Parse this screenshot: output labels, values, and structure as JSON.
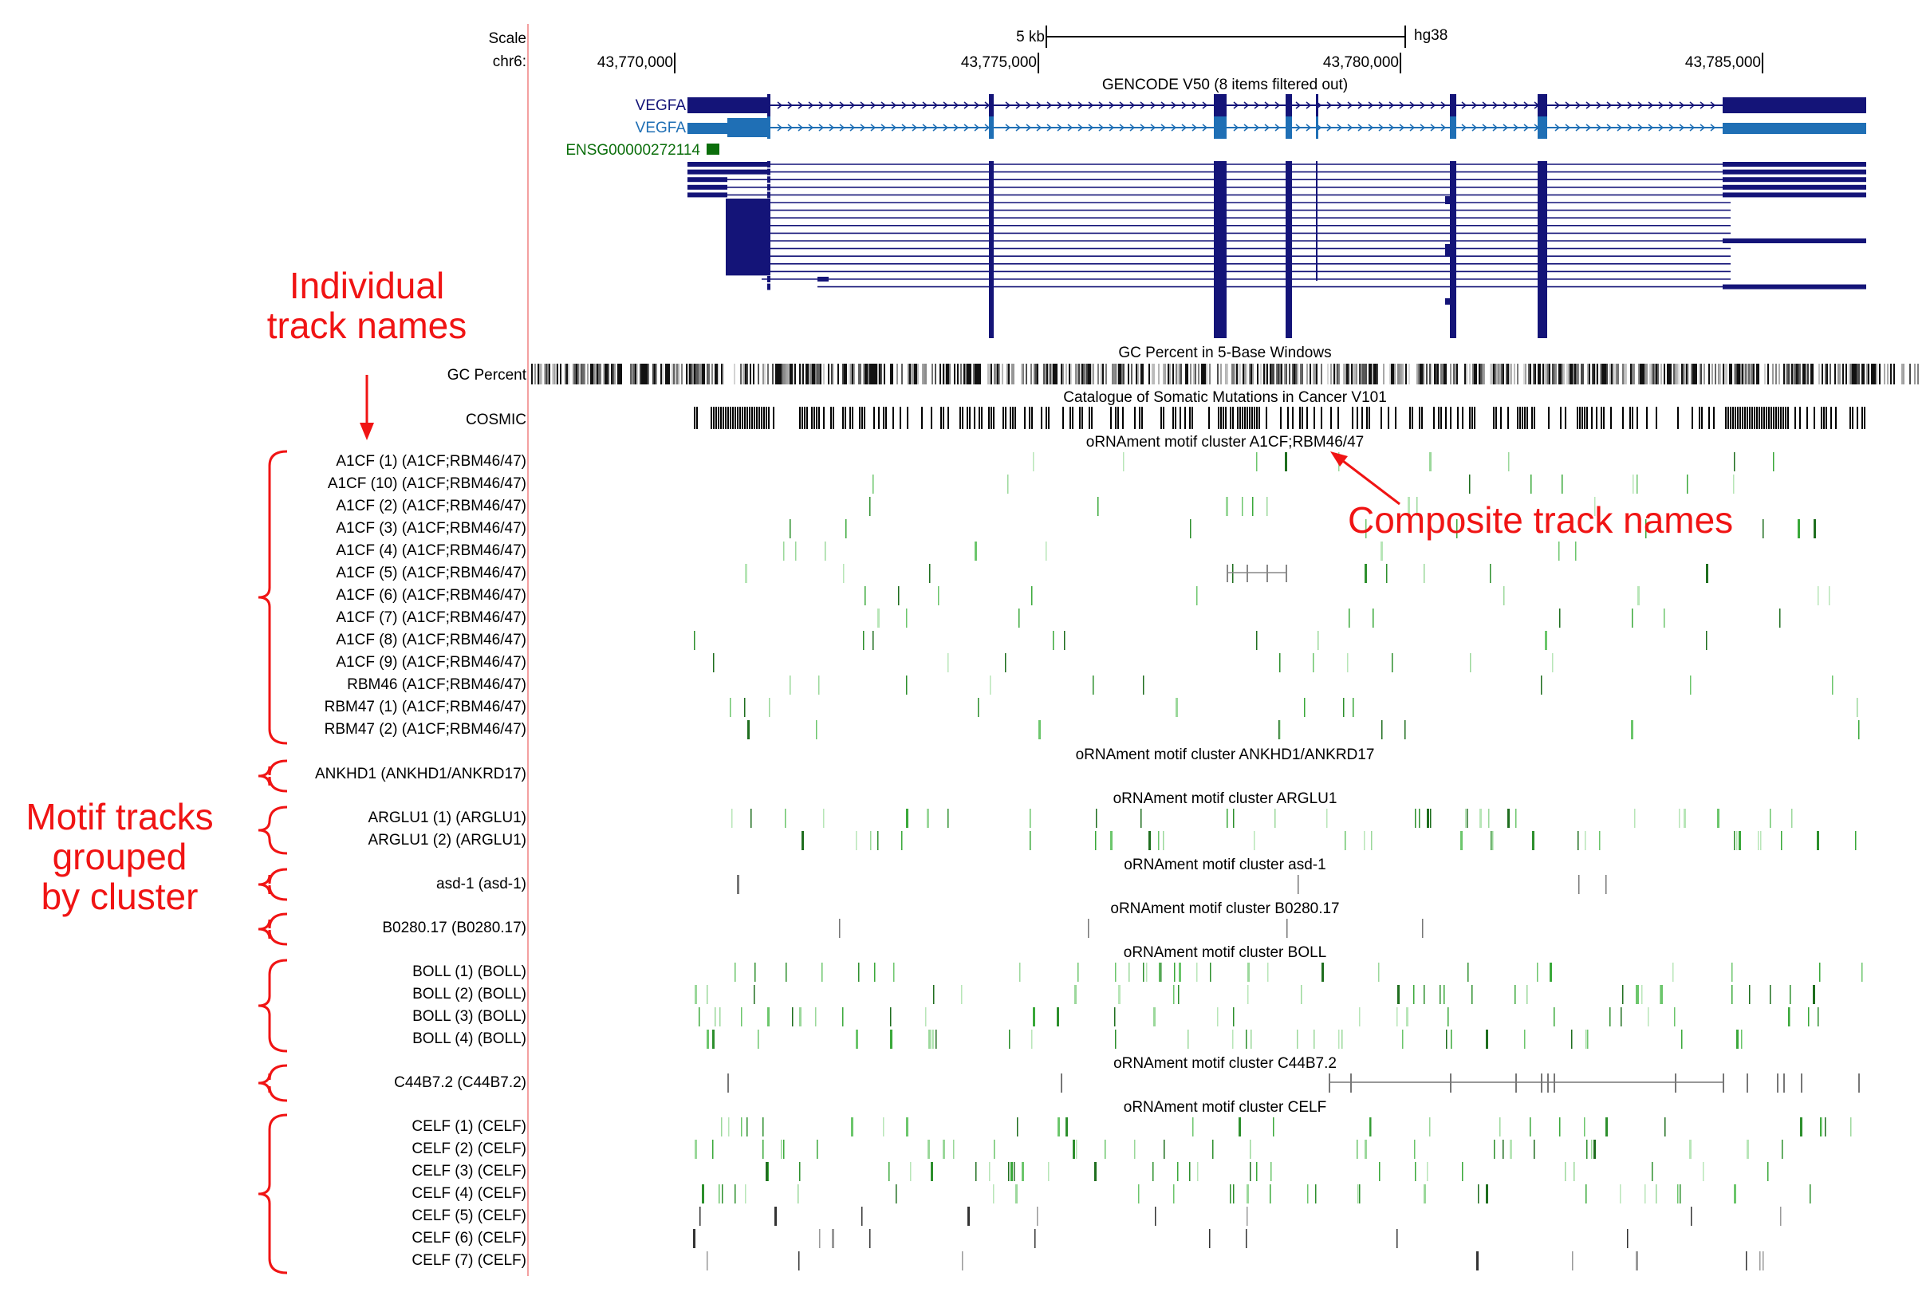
{
  "header": {
    "scale_label": "Scale",
    "chrom_label": "chr6:",
    "scale_bar_label": "5 kb",
    "assembly": "hg38",
    "ticks": [
      "43,770,000",
      "43,775,000",
      "43,780,000",
      "43,785,000"
    ]
  },
  "gencode": {
    "title": "GENCODE V50 (8 items filtered out)",
    "genes": [
      {
        "label": "VEGFA",
        "color": "#141478"
      },
      {
        "label": "VEGFA",
        "color": "#1f6fb5"
      },
      {
        "label": "ENSG00000272114",
        "color": "#0b6e0b"
      }
    ]
  },
  "gc": {
    "label": "GC Percent",
    "title": "GC Percent in 5-Base Windows"
  },
  "cosmic": {
    "label": "COSMIC",
    "title": "Catalogue of Somatic Mutations in Cancer V101"
  },
  "clusters": [
    {
      "title": "oRNAment motif cluster A1CF;RBM46/47",
      "tracks": [
        "A1CF (1) (A1CF;RBM46/47)",
        "A1CF (10) (A1CF;RBM46/47)",
        "A1CF (2) (A1CF;RBM46/47)",
        "A1CF (3) (A1CF;RBM46/47)",
        "A1CF (4) (A1CF;RBM46/47)",
        "A1CF (5) (A1CF;RBM46/47)",
        "A1CF (6) (A1CF;RBM46/47)",
        "A1CF (7) (A1CF;RBM46/47)",
        "A1CF (8) (A1CF;RBM46/47)",
        "A1CF (9) (A1CF;RBM46/47)",
        "RBM46 (A1CF;RBM46/47)",
        "RBM47 (1) (A1CF;RBM46/47)",
        "RBM47 (2) (A1CF;RBM46/47)"
      ]
    },
    {
      "title": "oRNAment motif cluster ANKHD1/ANKRD17",
      "tracks": [
        "ANKHD1 (ANKHD1/ANKRD17)"
      ]
    },
    {
      "title": "oRNAment motif cluster ARGLU1",
      "tracks": [
        "ARGLU1 (1) (ARGLU1)",
        "ARGLU1 (2) (ARGLU1)"
      ]
    },
    {
      "title": "oRNAment motif cluster asd-1",
      "tracks": [
        "asd-1 (asd-1)"
      ]
    },
    {
      "title": "oRNAment motif cluster B0280.17",
      "tracks": [
        "B0280.17 (B0280.17)"
      ]
    },
    {
      "title": "oRNAment motif cluster BOLL",
      "tracks": [
        "BOLL (1) (BOLL)",
        "BOLL (2) (BOLL)",
        "BOLL (3) (BOLL)",
        "BOLL (4) (BOLL)"
      ]
    },
    {
      "title": "oRNAment motif cluster C44B7.2",
      "tracks": [
        "C44B7.2 (C44B7.2)"
      ]
    },
    {
      "title": "oRNAment motif cluster CELF",
      "tracks": [
        "CELF (1) (CELF)",
        "CELF (2) (CELF)",
        "CELF (3) (CELF)",
        "CELF (4) (CELF)",
        "CELF (5) (CELF)",
        "CELF (6) (CELF)",
        "CELF (7) (CELF)"
      ]
    }
  ],
  "annotations": {
    "individual": [
      "Individual",
      "track names"
    ],
    "composite": "Composite track names",
    "motif": [
      "Motif tracks",
      "grouped",
      "by cluster"
    ]
  },
  "colors": {
    "gene_dark": "#141478",
    "gene_light": "#1f6fb5",
    "ensg": "#0b6e0b",
    "annotation_red": "#f01414",
    "divider": "#f4a0a0",
    "motif_green": "#3aa83a",
    "motif_grey": "#555555"
  }
}
